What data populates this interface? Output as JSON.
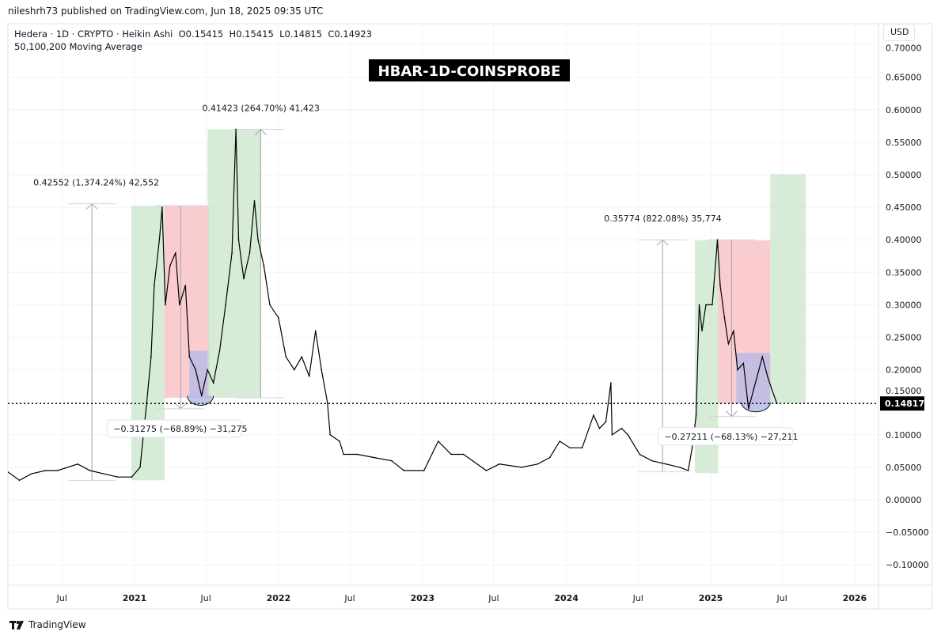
{
  "header": {
    "published": "nileshrh73 published on TradingView.com, Jun 18, 2025 09:35 UTC"
  },
  "legend": {
    "line1": "Hedera · 1D · CRYPTO · Heikin Ashi  O0.15415  H0.15415  L0.14815  C0.14923",
    "line2": "50,100,200 Moving Average"
  },
  "currency_button": "USD",
  "footer": {
    "brand": "TradingView",
    "logo_icon": "tradingview-logo-icon"
  },
  "chart_data": {
    "type": "line",
    "title": "HBAR-1D-COINSPROBE",
    "y_ticks": [
      0.7,
      0.65,
      0.6,
      0.55,
      0.5,
      0.45,
      0.4,
      0.35,
      0.3,
      0.25,
      0.2,
      0.15,
      0.1,
      0.05,
      0.0,
      -0.05,
      -0.1
    ],
    "y_tick_labels": [
      "0.70000",
      "0.65000",
      "0.60000",
      "0.55000",
      "0.50000",
      "0.45000",
      "0.40000",
      "0.35000",
      "0.30000",
      "0.25000",
      "0.20000",
      "0.15000",
      "0.10000",
      "0.05000",
      "0.00000",
      "−0.05000",
      "−0.10000"
    ],
    "x_ticks": [
      {
        "label": "Jul",
        "date": "2020-07-01",
        "bold": false
      },
      {
        "label": "2021",
        "date": "2021-01-01",
        "bold": true
      },
      {
        "label": "Jul",
        "date": "2021-07-01",
        "bold": false
      },
      {
        "label": "2022",
        "date": "2022-01-01",
        "bold": true
      },
      {
        "label": "Jul",
        "date": "2022-07-01",
        "bold": false
      },
      {
        "label": "2023",
        "date": "2023-01-01",
        "bold": true
      },
      {
        "label": "Jul",
        "date": "2023-07-01",
        "bold": false
      },
      {
        "label": "2024",
        "date": "2024-01-01",
        "bold": true
      },
      {
        "label": "Jul",
        "date": "2024-07-01",
        "bold": false
      },
      {
        "label": "2025",
        "date": "2025-01-01",
        "bold": true
      },
      {
        "label": "Jul",
        "date": "2025-07-01",
        "bold": false
      },
      {
        "label": "2026",
        "date": "2026-01-01",
        "bold": true
      }
    ],
    "grid": true,
    "current_price": {
      "value": 0.14817,
      "label": "0.14817"
    },
    "series": [
      {
        "color": "#000000",
        "points": [
          [
            "2020-01-20",
            0.04
          ],
          [
            "2020-02-10",
            0.045
          ],
          [
            "2020-03-15",
            0.03
          ],
          [
            "2020-04-15",
            0.04
          ],
          [
            "2020-05-20",
            0.045
          ],
          [
            "2020-06-20",
            0.045
          ],
          [
            "2020-08-10",
            0.055
          ],
          [
            "2020-09-10",
            0.045
          ],
          [
            "2020-10-15",
            0.04
          ],
          [
            "2020-11-20",
            0.035
          ],
          [
            "2020-12-25",
            0.035
          ],
          [
            "2021-01-15",
            0.05
          ],
          [
            "2021-02-01",
            0.15
          ],
          [
            "2021-02-12",
            0.22
          ],
          [
            "2021-02-20",
            0.33
          ],
          [
            "2021-03-05",
            0.4
          ],
          [
            "2021-03-12",
            0.45
          ],
          [
            "2021-03-20",
            0.3
          ],
          [
            "2021-04-01",
            0.36
          ],
          [
            "2021-04-15",
            0.38
          ],
          [
            "2021-04-25",
            0.3
          ],
          [
            "2021-05-10",
            0.33
          ],
          [
            "2021-05-20",
            0.22
          ],
          [
            "2021-06-05",
            0.2
          ],
          [
            "2021-06-20",
            0.16
          ],
          [
            "2021-07-05",
            0.2
          ],
          [
            "2021-07-20",
            0.18
          ],
          [
            "2021-08-05",
            0.23
          ],
          [
            "2021-08-20",
            0.3
          ],
          [
            "2021-09-05",
            0.38
          ],
          [
            "2021-09-15",
            0.57
          ],
          [
            "2021-09-22",
            0.4
          ],
          [
            "2021-10-05",
            0.34
          ],
          [
            "2021-10-20",
            0.38
          ],
          [
            "2021-11-01",
            0.46
          ],
          [
            "2021-11-10",
            0.4
          ],
          [
            "2021-11-25",
            0.36
          ],
          [
            "2021-12-10",
            0.3
          ],
          [
            "2022-01-01",
            0.28
          ],
          [
            "2022-01-20",
            0.22
          ],
          [
            "2022-02-10",
            0.2
          ],
          [
            "2022-03-01",
            0.22
          ],
          [
            "2022-03-20",
            0.19
          ],
          [
            "2022-04-05",
            0.26
          ],
          [
            "2022-04-20",
            0.2
          ],
          [
            "2022-05-05",
            0.15
          ],
          [
            "2022-05-12",
            0.1
          ],
          [
            "2022-06-05",
            0.09
          ],
          [
            "2022-06-15",
            0.07
          ],
          [
            "2022-07-20",
            0.07
          ],
          [
            "2022-09-01",
            0.065
          ],
          [
            "2022-10-15",
            0.06
          ],
          [
            "2022-11-15",
            0.045
          ],
          [
            "2023-01-05",
            0.045
          ],
          [
            "2023-02-10",
            0.09
          ],
          [
            "2023-03-15",
            0.07
          ],
          [
            "2023-04-15",
            0.07
          ],
          [
            "2023-06-12",
            0.045
          ],
          [
            "2023-07-15",
            0.055
          ],
          [
            "2023-09-10",
            0.05
          ],
          [
            "2023-10-20",
            0.055
          ],
          [
            "2023-11-20",
            0.065
          ],
          [
            "2023-12-15",
            0.09
          ],
          [
            "2024-01-10",
            0.08
          ],
          [
            "2024-02-10",
            0.08
          ],
          [
            "2024-03-10",
            0.13
          ],
          [
            "2024-03-25",
            0.11
          ],
          [
            "2024-04-10",
            0.12
          ],
          [
            "2024-04-23",
            0.18
          ],
          [
            "2024-04-26",
            0.1
          ],
          [
            "2024-05-20",
            0.11
          ],
          [
            "2024-06-05",
            0.1
          ],
          [
            "2024-07-05",
            0.07
          ],
          [
            "2024-08-05",
            0.06
          ],
          [
            "2024-09-10",
            0.055
          ],
          [
            "2024-10-15",
            0.05
          ],
          [
            "2024-11-05",
            0.045
          ],
          [
            "2024-11-15",
            0.08
          ],
          [
            "2024-11-25",
            0.13
          ],
          [
            "2024-12-03",
            0.3
          ],
          [
            "2024-12-10",
            0.26
          ],
          [
            "2024-12-20",
            0.3
          ],
          [
            "2025-01-05",
            0.3
          ],
          [
            "2025-01-18",
            0.4
          ],
          [
            "2025-01-25",
            0.33
          ],
          [
            "2025-02-05",
            0.28
          ],
          [
            "2025-02-15",
            0.24
          ],
          [
            "2025-02-28",
            0.26
          ],
          [
            "2025-03-10",
            0.2
          ],
          [
            "2025-03-25",
            0.21
          ],
          [
            "2025-04-07",
            0.14
          ],
          [
            "2025-04-20",
            0.17
          ],
          [
            "2025-05-12",
            0.22
          ],
          [
            "2025-05-25",
            0.19
          ],
          [
            "2025-06-05",
            0.17
          ],
          [
            "2025-06-18",
            0.148
          ]
        ]
      }
    ],
    "drawings": {
      "boxes": [
        {
          "color": "#c8e6c9",
          "from": "2020-12-24",
          "to": "2021-03-18",
          "top": 0.4525,
          "bottom": 0.03
        },
        {
          "color": "#f8bbc0",
          "from": "2021-03-18",
          "to": "2021-07-10",
          "top": 0.4525,
          "bottom": 0.157
        },
        {
          "color": "#b3b8e8",
          "from": "2021-05-20",
          "to": "2021-07-10",
          "top": 0.229,
          "bottom": 0.157
        },
        {
          "color": "#c8e6c9",
          "from": "2021-07-05",
          "to": "2021-11-17",
          "top": 0.57,
          "bottom": 0.157
        },
        {
          "color": "#c8e6c9",
          "from": "2024-11-22",
          "to": "2025-01-20",
          "top": 0.399,
          "bottom": 0.041
        },
        {
          "color": "#f8bbc0",
          "from": "2025-01-20",
          "to": "2025-06-01",
          "top": 0.399,
          "bottom": 0.148
        },
        {
          "color": "#b3b8e8",
          "from": "2025-03-07",
          "to": "2025-06-01",
          "top": 0.226,
          "bottom": 0.148
        },
        {
          "color": "#c8e6c9",
          "from": "2025-06-01",
          "to": "2025-08-30",
          "top": 0.501,
          "bottom": 0.148
        }
      ],
      "measures": [
        {
          "date": "2020-09-15",
          "from": 0.03,
          "to": 0.4555,
          "label": "0.42552 (1,374.24%) 42,552"
        },
        {
          "date": "2021-11-17",
          "from": 0.157,
          "to": 0.57,
          "label": "0.41423 (264.70%) 41,423"
        },
        {
          "date": "2021-04-28",
          "from": 0.4525,
          "to": 0.14,
          "label": "−0.31275 (−68.89%) −31,275"
        },
        {
          "date": "2024-09-01",
          "from": 0.043,
          "to": 0.4,
          "label": "0.35774 (822.08%) 35,774"
        },
        {
          "date": "2025-02-23",
          "from": 0.4,
          "to": 0.128,
          "label": "−0.27211 (−68.13%) −27,211"
        }
      ]
    }
  }
}
